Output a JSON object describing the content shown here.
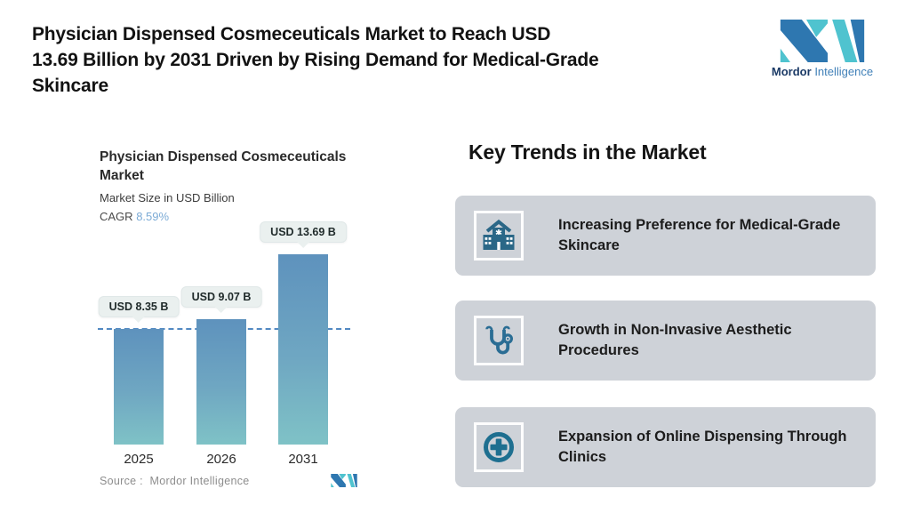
{
  "header": {
    "title_lines": [
      "Physician Dispensed Cosmeceuticals Market to Reach USD",
      "13.69 Billion by 2031 Driven by Rising Demand for Medical-Grade",
      "Skincare"
    ],
    "logo": {
      "word_bold": "Mordor",
      "word_light": "Intelligence"
    }
  },
  "chart": {
    "title_line1": "Physician Dispensed Cosmeceuticals",
    "title_line2": "Market",
    "subtitle": "Market Size in USD Billion",
    "cagr_label": "CAGR",
    "cagr_value": "8.59%",
    "source_text": "Source :  Mordor Intelligence"
  },
  "chart_data": {
    "type": "bar",
    "title": "Physician Dispensed Cosmeceuticals Market",
    "subtitle": "Market Size in USD Billion",
    "cagr": "8.59%",
    "categories": [
      "2025",
      "2026",
      "2031"
    ],
    "values": [
      8.35,
      9.07,
      13.69
    ],
    "value_labels": [
      "USD 8.35 B",
      "USD 9.07 B",
      "USD 13.69 B"
    ],
    "ylabel": "Market Size in USD Billion",
    "ylim": [
      0,
      15
    ],
    "grid": false,
    "legend": "none",
    "reference_line": {
      "value": 8.35,
      "style": "dashed",
      "color": "#5289c2"
    },
    "bar_gradient_top": "#5e92bd",
    "bar_gradient_bottom": "#7fc2c6"
  },
  "trends": {
    "heading": "Key Trends in the Market",
    "cards": [
      {
        "icon": "hospital-icon",
        "text": "Increasing Preference for Medical-Grade Skincare"
      },
      {
        "icon": "stethoscope-icon",
        "text": "Growth in Non-Invasive Aesthetic Procedures"
      },
      {
        "icon": "medical-cross-circle-icon",
        "text": "Expansion of Online Dispensing Through Clinics"
      }
    ]
  },
  "colors": {
    "background": "#ffffff",
    "card_background": "#ced2d8",
    "icon_blue": "#2a6787",
    "logo_teal": "#4fc3cf",
    "logo_navy": "#2e77b0",
    "cagr_blue": "#7cabd6",
    "dashed_line": "#5289c2",
    "badge_background": "#eaf0ef",
    "source_gray": "#8d8d8d"
  }
}
